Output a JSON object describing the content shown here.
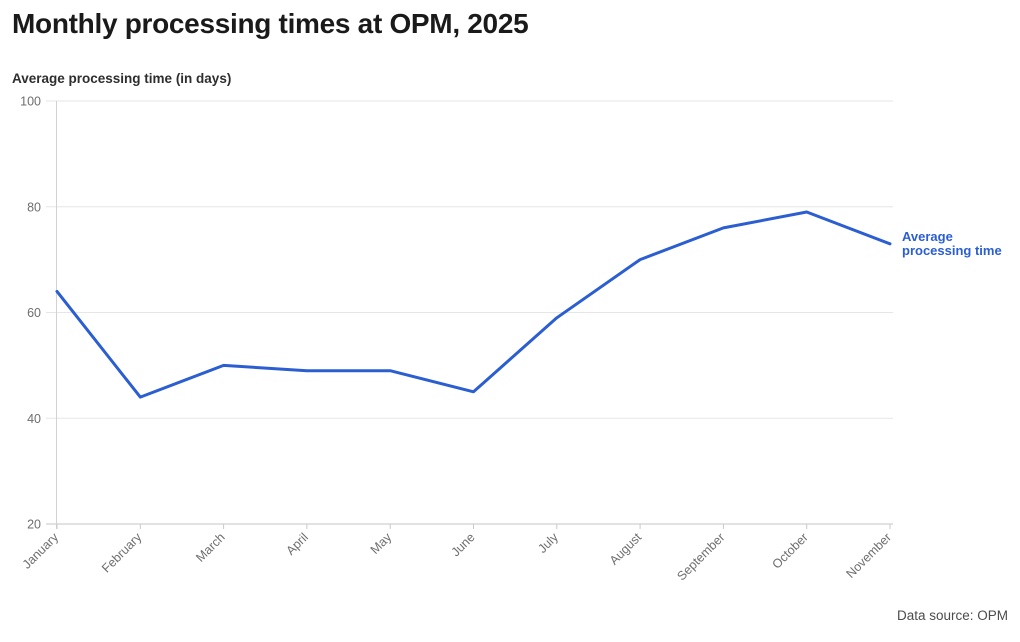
{
  "header": {
    "title": "Monthly processing times at OPM, 2025"
  },
  "chart_data": {
    "type": "line",
    "title": "Monthly processing times at OPM, 2025",
    "y_axis_label": "Average processing time (in days)",
    "categories": [
      "January",
      "February",
      "March",
      "April",
      "May",
      "June",
      "July",
      "August",
      "September",
      "October",
      "November"
    ],
    "series": [
      {
        "name": "Average processing time",
        "values": [
          64,
          44,
          50,
          49,
          49,
          45,
          59,
          70,
          76,
          79,
          73
        ],
        "color": "#2b5ed1"
      }
    ],
    "ylim": [
      20,
      100
    ],
    "yticks": [
      20,
      40,
      60,
      80,
      100
    ],
    "grid": "horizontal",
    "legend_position": "right-of-line-end"
  },
  "footer": {
    "source": "Data source: OPM"
  },
  "colors": {
    "accent": "#2b5ed1",
    "title_text": "#1a1a1a",
    "axis_text": "#6e6e6e",
    "gridline": "#e6e6e6",
    "axis_line": "#c6c6c6",
    "background": "#ffffff"
  }
}
